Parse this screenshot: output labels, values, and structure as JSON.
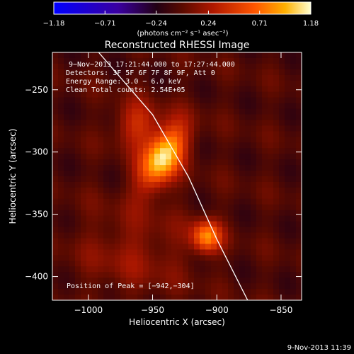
{
  "footer": {
    "timestamp": "9-Nov-2013 11:39"
  },
  "chart_data": {
    "type": "heatmap",
    "title": "Reconstructed RHESSI Image",
    "xlabel": "Heliocentric X (arcsec)",
    "ylabel": "Heliocentric Y (arcsec)",
    "xlim": [
      -1028,
      -834
    ],
    "ylim": [
      -419,
      -220
    ],
    "x_ticks": [
      -1000,
      -950,
      -900,
      -850
    ],
    "y_ticks": [
      -250,
      -300,
      -350,
      -400
    ],
    "x_tick_labels": [
      "−1000",
      "−950",
      "−900",
      "−850"
    ],
    "y_tick_labels": [
      "−250",
      "−300",
      "−350",
      "−400"
    ],
    "colorbar": {
      "min": -1.18,
      "max": 1.18,
      "tick_values": [
        -1.18,
        -0.71,
        -0.24,
        0.24,
        0.71,
        1.18
      ],
      "tick_labels": [
        "−1.18",
        "−0.71",
        "−0.24",
        "0.24",
        "0.71",
        "1.18"
      ],
      "unit_label": "(photons cm⁻² s⁻¹ asec⁻²)"
    },
    "annotations": [
      "9−Nov−2013 17:21:44.000 to 17:27:44.000",
      "Detectors: 3F 5F 6F 7F 8F 9F, Att 0",
      "Energy Range: 3.0 − 6.0 keV",
      "Clean     Total counts: 2.54E+05"
    ],
    "peak_label": "Position of Peak = [−942,−304]",
    "sources": [
      {
        "x": -942,
        "y": -304,
        "sx": 10,
        "sy": 19,
        "angle_deg": 28,
        "amp": 1.18
      },
      {
        "x": -962,
        "y": -278,
        "sx": 12,
        "sy": 13,
        "angle_deg": 0,
        "amp": 0.45
      },
      {
        "x": -908,
        "y": -368,
        "sx": 8,
        "sy": 9,
        "angle_deg": 0,
        "amp": 0.85
      },
      {
        "x": -965,
        "y": -380,
        "sx": 30,
        "sy": 25,
        "angle_deg": 0,
        "amp": 0.22
      }
    ],
    "limb_curve": [
      [
        -992,
        -220
      ],
      [
        -950,
        -270
      ],
      [
        -922,
        -320
      ],
      [
        -900,
        -370
      ],
      [
        -876,
        -419
      ]
    ],
    "colors": {
      "limb": "#ffffff",
      "background": "#000000"
    }
  }
}
